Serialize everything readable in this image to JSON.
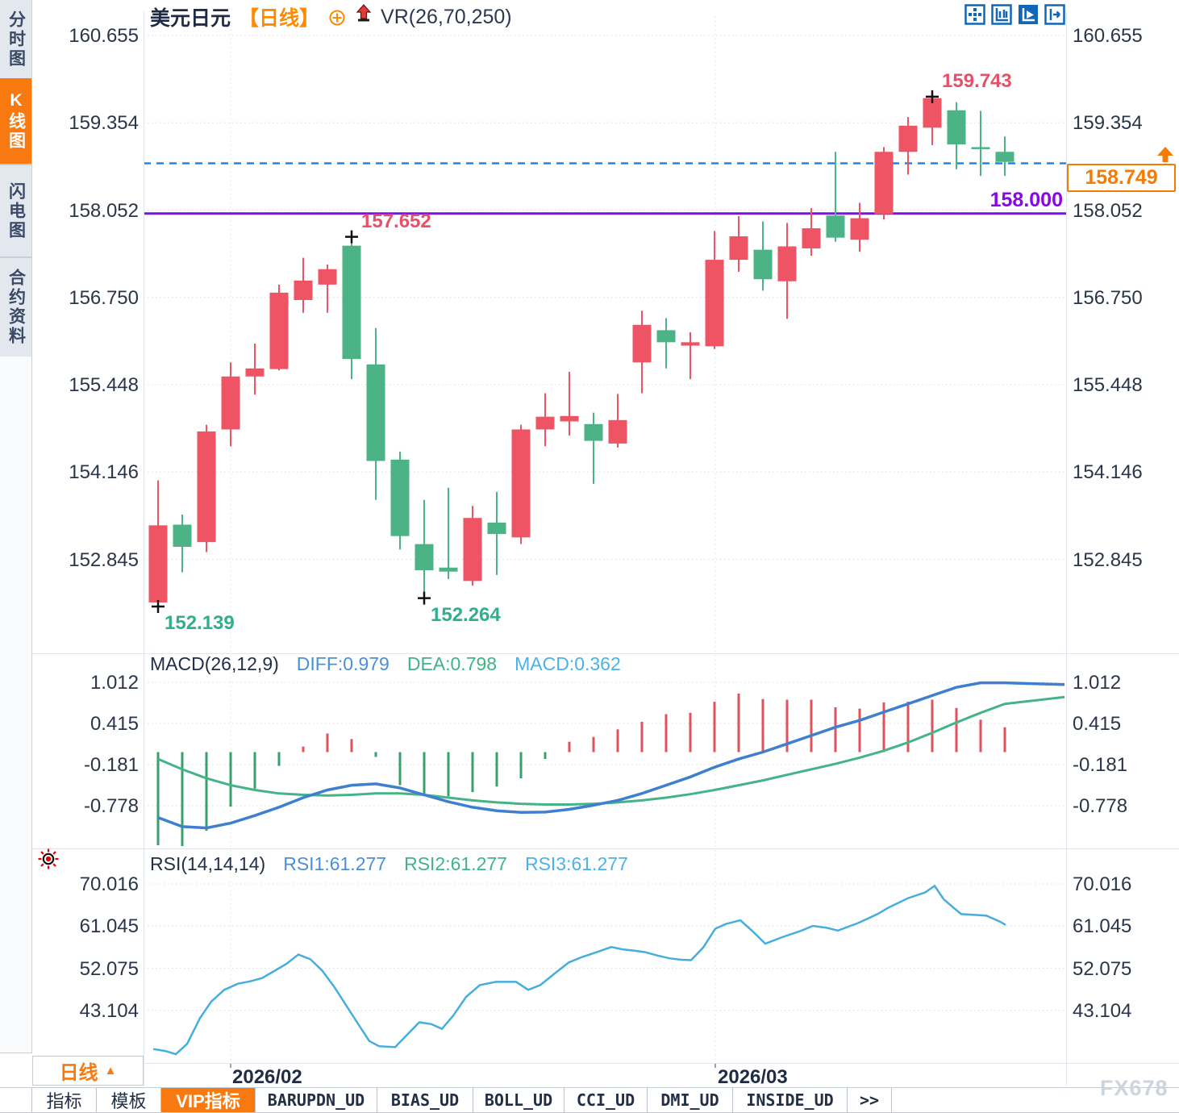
{
  "header": {
    "symbol": "美元日元",
    "period_tag": "【日线】",
    "overlay_indicator": "VR(26,70,250)",
    "icon_names": [
      "circle-plus-icon",
      "red-up-arrow-icon"
    ],
    "toolbar_icon_names": [
      "pan-icon",
      "axis-range-icon",
      "axis-play-icon",
      "export-right-icon"
    ]
  },
  "sidebar": {
    "items": [
      {
        "label": "分时图",
        "active": false
      },
      {
        "label": "K线图",
        "active": true
      },
      {
        "label": "闪电图",
        "active": false
      },
      {
        "label": "合约资料",
        "active": false
      }
    ]
  },
  "colors": {
    "candle_up": "#ee5464",
    "candle_down": "#4bb385",
    "hist_up": "#e2525e",
    "hist_down": "#3aa06b",
    "diff_blue": "#3f7fd0",
    "dea_green": "#44b488",
    "rsi_blue": "#46aede",
    "dashed_blue": "#1d86e8",
    "purple": "#7d10e8",
    "accent_orange": "#f8790f",
    "navy": "#26324c",
    "high_label": "#e8506a",
    "low_label": "#2faf8a"
  },
  "chart_data": [
    {
      "type": "candlestick",
      "symbol": "美元日元",
      "period": "日线",
      "convention": "red=up, green=down",
      "y_ticks": [
        "160.655",
        "159.354",
        "158.052",
        "156.750",
        "155.448",
        "154.146",
        "152.845"
      ],
      "x_ticks": [
        "2026/02",
        "2026/03"
      ],
      "x_start": 196,
      "x_step": 30,
      "candles": [
        [
          152.2,
          154.02,
          152.139,
          153.35
        ],
        [
          153.36,
          153.51,
          152.65,
          153.03
        ],
        [
          153.1,
          154.85,
          152.95,
          154.75
        ],
        [
          154.78,
          155.78,
          154.53,
          155.57
        ],
        [
          155.57,
          156.06,
          155.3,
          155.69
        ],
        [
          155.68,
          156.94,
          155.66,
          156.82
        ],
        [
          156.71,
          157.34,
          156.52,
          157.0
        ],
        [
          156.94,
          157.24,
          156.52,
          157.17
        ],
        [
          157.52,
          157.652,
          155.53,
          155.83
        ],
        [
          155.75,
          156.29,
          153.73,
          154.31
        ],
        [
          154.33,
          154.45,
          152.99,
          153.19
        ],
        [
          153.07,
          153.73,
          152.264,
          152.68
        ],
        [
          152.72,
          153.91,
          152.55,
          152.66
        ],
        [
          152.52,
          153.64,
          152.45,
          153.46
        ],
        [
          153.39,
          153.85,
          152.61,
          153.22
        ],
        [
          153.17,
          154.85,
          153.07,
          154.78
        ],
        [
          154.78,
          155.32,
          154.53,
          154.97
        ],
        [
          154.9,
          155.64,
          154.69,
          154.98
        ],
        [
          154.86,
          155.03,
          153.97,
          154.61
        ],
        [
          154.57,
          155.31,
          154.51,
          154.92
        ],
        [
          155.78,
          156.55,
          155.32,
          156.34
        ],
        [
          156.26,
          156.44,
          155.69,
          156.08
        ],
        [
          156.03,
          156.23,
          155.53,
          156.08
        ],
        [
          156.02,
          157.74,
          155.98,
          157.31
        ],
        [
          157.31,
          157.96,
          157.13,
          157.66
        ],
        [
          157.46,
          157.88,
          156.85,
          157.02
        ],
        [
          156.99,
          157.86,
          156.43,
          157.51
        ],
        [
          157.48,
          158.08,
          157.37,
          157.78
        ],
        [
          157.97,
          158.92,
          157.58,
          157.64
        ],
        [
          157.61,
          158.16,
          157.43,
          157.93
        ],
        [
          157.99,
          158.99,
          157.91,
          158.92
        ],
        [
          158.92,
          159.44,
          158.58,
          159.31
        ],
        [
          159.28,
          159.743,
          159.02,
          159.72
        ],
        [
          159.54,
          159.66,
          158.66,
          159.03
        ],
        [
          158.99,
          159.53,
          158.56,
          158.96
        ],
        [
          158.92,
          159.15,
          158.56,
          158.77
        ]
      ],
      "annotations": [
        {
          "kind": "low",
          "x_index": 0,
          "price": 152.139,
          "label": "152.139"
        },
        {
          "kind": "low",
          "x_index": 11,
          "price": 152.264,
          "label": "152.264"
        },
        {
          "kind": "high",
          "x_index": 8,
          "price": 157.652,
          "label": "157.652"
        },
        {
          "kind": "high",
          "x_index": 32,
          "price": 159.743,
          "label": "159.743"
        }
      ],
      "current_price": {
        "label": "158.749",
        "price": 158.749
      },
      "horizontal_line": {
        "label": "158.000",
        "price": 158.0
      }
    },
    {
      "type": "bar",
      "name": "MACD",
      "legend": {
        "name": "MACD(26,12,9)",
        "diff": "DIFF:0.979",
        "dea": "DEA:0.798",
        "macd": "MACD:0.362"
      },
      "y_ticks": [
        "1.012",
        "0.415",
        "-0.181",
        "-0.778"
      ],
      "histogram": [
        -1.35,
        -1.45,
        -1.14,
        -0.79,
        -0.53,
        -0.2,
        0.08,
        0.27,
        0.19,
        -0.07,
        -0.48,
        -0.64,
        -0.64,
        -0.58,
        -0.5,
        -0.38,
        -0.1,
        0.15,
        0.22,
        0.33,
        0.44,
        0.55,
        0.57,
        0.73,
        0.85,
        0.77,
        0.76,
        0.76,
        0.65,
        0.63,
        0.72,
        0.73,
        0.76,
        0.64,
        0.47,
        0.36
      ],
      "diff_line": [
        [
          196,
          -0.95
        ],
        [
          226,
          -1.08
        ],
        [
          256,
          -1.1
        ],
        [
          286,
          -1.03
        ],
        [
          316,
          -0.92
        ],
        [
          346,
          -0.8
        ],
        [
          376,
          -0.66
        ],
        [
          406,
          -0.55
        ],
        [
          436,
          -0.48
        ],
        [
          466,
          -0.46
        ],
        [
          496,
          -0.52
        ],
        [
          526,
          -0.62
        ],
        [
          556,
          -0.72
        ],
        [
          586,
          -0.8
        ],
        [
          616,
          -0.85
        ],
        [
          646,
          -0.875
        ],
        [
          676,
          -0.87
        ],
        [
          706,
          -0.83
        ],
        [
          736,
          -0.77
        ],
        [
          766,
          -0.7
        ],
        [
          796,
          -0.6
        ],
        [
          826,
          -0.48
        ],
        [
          856,
          -0.36
        ],
        [
          886,
          -0.22
        ],
        [
          916,
          -0.1
        ],
        [
          946,
          0.0
        ],
        [
          976,
          0.12
        ],
        [
          1006,
          0.24
        ],
        [
          1036,
          0.36
        ],
        [
          1066,
          0.46
        ],
        [
          1096,
          0.58
        ],
        [
          1126,
          0.7
        ],
        [
          1156,
          0.82
        ],
        [
          1186,
          0.94
        ],
        [
          1216,
          1.005
        ],
        [
          1246,
          1.005
        ],
        [
          1320,
          0.979
        ]
      ],
      "dea_line": [
        [
          196,
          -0.1
        ],
        [
          226,
          -0.25
        ],
        [
          256,
          -0.38
        ],
        [
          286,
          -0.48
        ],
        [
          316,
          -0.55
        ],
        [
          346,
          -0.6
        ],
        [
          376,
          -0.62
        ],
        [
          406,
          -0.63
        ],
        [
          436,
          -0.62
        ],
        [
          466,
          -0.6
        ],
        [
          496,
          -0.6
        ],
        [
          526,
          -0.62
        ],
        [
          556,
          -0.66
        ],
        [
          586,
          -0.7
        ],
        [
          616,
          -0.73
        ],
        [
          646,
          -0.75
        ],
        [
          676,
          -0.76
        ],
        [
          706,
          -0.76
        ],
        [
          736,
          -0.75
        ],
        [
          766,
          -0.73
        ],
        [
          796,
          -0.7
        ],
        [
          826,
          -0.66
        ],
        [
          856,
          -0.61
        ],
        [
          886,
          -0.55
        ],
        [
          916,
          -0.48
        ],
        [
          946,
          -0.41
        ],
        [
          976,
          -0.33
        ],
        [
          1006,
          -0.25
        ],
        [
          1036,
          -0.17
        ],
        [
          1066,
          -0.08
        ],
        [
          1096,
          0.02
        ],
        [
          1126,
          0.14
        ],
        [
          1156,
          0.28
        ],
        [
          1186,
          0.43
        ],
        [
          1216,
          0.57
        ],
        [
          1246,
          0.7
        ],
        [
          1320,
          0.798
        ]
      ]
    },
    {
      "type": "line",
      "name": "RSI",
      "legend": {
        "name": "RSI(14,14,14)",
        "rsi1": "RSI1:61.277",
        "rsi2": "RSI2:61.277",
        "rsi3": "RSI3:61.277"
      },
      "y_ticks": [
        "70.016",
        "61.045",
        "52.075",
        "43.104"
      ],
      "rsi_line": [
        [
          190,
          34.9
        ],
        [
          205,
          34.5
        ],
        [
          218,
          33.8
        ],
        [
          232,
          36.0
        ],
        [
          248,
          41.5
        ],
        [
          262,
          45.0
        ],
        [
          278,
          47.5
        ],
        [
          295,
          48.8
        ],
        [
          310,
          49.3
        ],
        [
          325,
          50.0
        ],
        [
          340,
          51.5
        ],
        [
          355,
          53.0
        ],
        [
          370,
          55.0
        ],
        [
          385,
          54.0
        ],
        [
          400,
          51.5
        ],
        [
          415,
          48.0
        ],
        [
          430,
          44.0
        ],
        [
          445,
          40.0
        ],
        [
          458,
          36.6
        ],
        [
          470,
          35.5
        ],
        [
          490,
          35.3
        ],
        [
          505,
          38.0
        ],
        [
          520,
          40.6
        ],
        [
          535,
          40.2
        ],
        [
          548,
          39.2
        ],
        [
          562,
          42.0
        ],
        [
          578,
          46.0
        ],
        [
          595,
          48.5
        ],
        [
          615,
          49.2
        ],
        [
          640,
          49.2
        ],
        [
          655,
          47.5
        ],
        [
          670,
          48.5
        ],
        [
          688,
          51.0
        ],
        [
          705,
          53.3
        ],
        [
          722,
          54.5
        ],
        [
          740,
          55.5
        ],
        [
          758,
          56.6
        ],
        [
          772,
          56.1
        ],
        [
          788,
          55.8
        ],
        [
          800,
          55.5
        ],
        [
          815,
          54.8
        ],
        [
          830,
          54.2
        ],
        [
          845,
          53.9
        ],
        [
          857,
          53.8
        ],
        [
          872,
          56.5
        ],
        [
          887,
          60.5
        ],
        [
          900,
          61.5
        ],
        [
          918,
          62.3
        ],
        [
          933,
          60.0
        ],
        [
          949,
          57.3
        ],
        [
          970,
          58.7
        ],
        [
          994,
          60.1
        ],
        [
          1008,
          61.1
        ],
        [
          1025,
          60.7
        ],
        [
          1039,
          60.1
        ],
        [
          1064,
          61.7
        ],
        [
          1088,
          63.6
        ],
        [
          1102,
          65.0
        ],
        [
          1126,
          67.0
        ],
        [
          1147,
          68.2
        ],
        [
          1159,
          69.6
        ],
        [
          1170,
          66.8
        ],
        [
          1182,
          65.0
        ],
        [
          1192,
          63.6
        ],
        [
          1213,
          63.4
        ],
        [
          1223,
          63.3
        ],
        [
          1240,
          62.0
        ],
        [
          1247,
          61.3
        ]
      ]
    }
  ],
  "footer": {
    "period_selector": {
      "label": "日线",
      "arrow": "▲"
    },
    "x_tick_labels": [
      "2026/02",
      "2026/03"
    ],
    "tabs": [
      {
        "label": "指标",
        "active": false,
        "mono": false
      },
      {
        "label": "模板",
        "active": false,
        "mono": false
      },
      {
        "label": "VIP指标",
        "active": true,
        "mono": false
      },
      {
        "label": "BARUPDN_UD",
        "active": false,
        "mono": true
      },
      {
        "label": "BIAS_UD",
        "active": false,
        "mono": true
      },
      {
        "label": "BOLL_UD",
        "active": false,
        "mono": true
      },
      {
        "label": "CCI_UD",
        "active": false,
        "mono": true
      },
      {
        "label": "DMI_UD",
        "active": false,
        "mono": true
      },
      {
        "label": "INSIDE_UD",
        "active": false,
        "mono": true
      },
      {
        "label": ">>",
        "active": false,
        "mono": true
      }
    ],
    "watermark": "FX678"
  }
}
